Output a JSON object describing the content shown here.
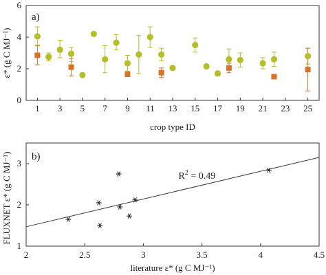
{
  "colors": {
    "green": "#b5be28",
    "orange": "#d8732a",
    "black": "#1a1a1a"
  },
  "chart_data": [
    {
      "type": "scatter",
      "panel_label": "a)",
      "xlabel": "crop type ID",
      "ylabel": "ε* (g C MJ⁻¹)",
      "xlim": [
        0,
        26
      ],
      "ylim": [
        0,
        6
      ],
      "xticks": [
        1,
        3,
        5,
        7,
        9,
        11,
        13,
        15,
        17,
        19,
        21,
        23,
        25
      ],
      "xtick_labels": [
        "1",
        "3",
        "5",
        "7",
        "9",
        "11",
        "13",
        "15",
        "17",
        "19",
        "21",
        "23",
        "25"
      ],
      "yticks": [
        0,
        2,
        4,
        6
      ],
      "ytick_labels": [
        "0",
        "2",
        "4",
        "6"
      ],
      "series": [
        {
          "marker": "circle",
          "color": "#b5be28",
          "points": [
            {
              "x": 1,
              "y": 4.05,
              "err_lo": 0.55,
              "err_hi": 0.6
            },
            {
              "x": 2,
              "y": 2.75,
              "err_lo": 0.25,
              "err_hi": 0.25
            },
            {
              "x": 3,
              "y": 3.2,
              "err_lo": 0.5,
              "err_hi": 0.6
            },
            {
              "x": 4,
              "y": 2.95,
              "err_lo": 0.5,
              "err_hi": 0.4
            },
            {
              "x": 5,
              "y": 1.6,
              "err_lo": 0,
              "err_hi": 0
            },
            {
              "x": 6,
              "y": 4.2,
              "err_lo": 0,
              "err_hi": 0
            },
            {
              "x": 7,
              "y": 2.6,
              "err_lo": 0.85,
              "err_hi": 0.85
            },
            {
              "x": 8,
              "y": 3.65,
              "err_lo": 0.45,
              "err_hi": 0.5
            },
            {
              "x": 9,
              "y": 2.35,
              "err_lo": 0.5,
              "err_hi": 0.5
            },
            {
              "x": 10,
              "y": 2.9,
              "err_lo": 1.2,
              "err_hi": 1.2
            },
            {
              "x": 11,
              "y": 4.0,
              "err_lo": 0.65,
              "err_hi": 0.65
            },
            {
              "x": 12,
              "y": 2.9,
              "err_lo": 0.4,
              "err_hi": 0.4
            },
            {
              "x": 13,
              "y": 2.05,
              "err_lo": 0,
              "err_hi": 0
            },
            {
              "x": 15,
              "y": 3.5,
              "err_lo": 0.45,
              "err_hi": 0.45
            },
            {
              "x": 16,
              "y": 2.15,
              "err_lo": 0,
              "err_hi": 0
            },
            {
              "x": 17,
              "y": 1.7,
              "err_lo": 0.15,
              "err_hi": 0.15
            },
            {
              "x": 18,
              "y": 2.6,
              "err_lo": 0.65,
              "err_hi": 0.65
            },
            {
              "x": 19,
              "y": 2.55,
              "err_lo": 0.45,
              "err_hi": 0.45
            },
            {
              "x": 21,
              "y": 2.35,
              "err_lo": 0.35,
              "err_hi": 0.35
            },
            {
              "x": 22,
              "y": 2.6,
              "err_lo": 0.45,
              "err_hi": 0.45
            },
            {
              "x": 25,
              "y": 2.8,
              "err_lo": 0.5,
              "err_hi": 0.5
            }
          ]
        },
        {
          "marker": "square",
          "color": "#d8732a",
          "points": [
            {
              "x": 1,
              "y": 2.85,
              "err_lo": 0.6,
              "err_hi": 0.6
            },
            {
              "x": 4,
              "y": 2.1,
              "err_lo": 0.55,
              "err_hi": 0.55
            },
            {
              "x": 9,
              "y": 1.65,
              "err_lo": 0,
              "err_hi": 0
            },
            {
              "x": 12,
              "y": 1.75,
              "err_lo": 0.3,
              "err_hi": 0.3
            },
            {
              "x": 18,
              "y": 2.05,
              "err_lo": 0.3,
              "err_hi": 0.3
            },
            {
              "x": 22,
              "y": 1.5,
              "err_lo": 0,
              "err_hi": 0
            },
            {
              "x": 25,
              "y": 1.95,
              "err_lo": 1.35,
              "err_hi": 1.35
            }
          ]
        }
      ]
    },
    {
      "type": "scatter",
      "panel_label": "b)",
      "xlabel": "literature  ε* (g C MJ⁻¹)",
      "ylabel": "FLUXNET  ε* (g C MJ⁻¹)",
      "xlim": [
        2,
        4.5
      ],
      "ylim": [
        1,
        3.5
      ],
      "xticks": [
        2,
        2.5,
        3,
        3.5,
        4,
        4.5
      ],
      "xtick_labels": [
        "2",
        "2.5",
        "3",
        "3.5",
        "4",
        "4.5"
      ],
      "yticks": [
        1,
        2,
        3
      ],
      "ytick_labels": [
        "1",
        "2",
        "3"
      ],
      "points": [
        {
          "x": 2.36,
          "y": 1.65
        },
        {
          "x": 2.62,
          "y": 2.05
        },
        {
          "x": 2.63,
          "y": 1.5
        },
        {
          "x": 2.79,
          "y": 2.75
        },
        {
          "x": 2.8,
          "y": 1.95
        },
        {
          "x": 2.88,
          "y": 1.73
        },
        {
          "x": 2.93,
          "y": 2.12
        },
        {
          "x": 4.07,
          "y": 2.84
        }
      ],
      "fit_line": {
        "x": [
          2,
          4.5
        ],
        "y": [
          1.47,
          3.15
        ]
      },
      "annotation": {
        "base": "R",
        "exponent": "2",
        "text": " = 0.49",
        "x": 3.3,
        "y": 2.7
      }
    }
  ]
}
